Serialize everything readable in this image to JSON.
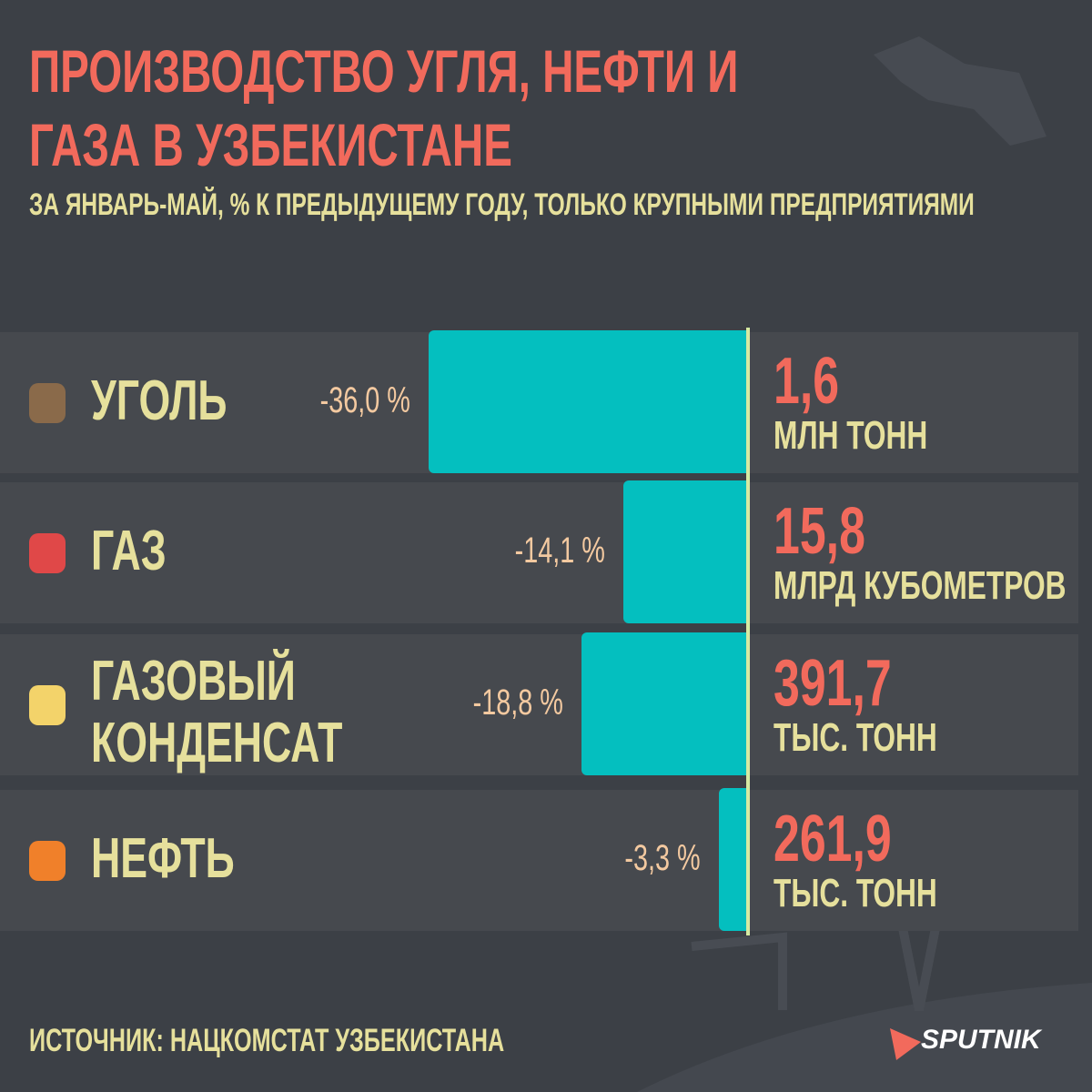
{
  "chart_data": {
    "type": "bar",
    "title": "ПРОИЗВОДСТВО УГЛЯ, НЕФТИ И ГАЗА В УЗБЕКИСТАНЕ",
    "subtitle": "ЗА ЯНВАРЬ-МАЙ, % К ПРЕДЫДУЩЕМУ ГОДУ, ТОЛЬКО КРУПНЫМИ ПРЕДПРИЯТИЯМИ",
    "categories": [
      "УГОЛЬ",
      "ГАЗ",
      "ГАЗОВЫЙ КОНДЕНСАТ",
      "НЕФТЬ"
    ],
    "values": [
      -36.0,
      -14.1,
      -18.8,
      -3.3
    ],
    "value_labels": [
      "-36,0 %",
      "-14,1 %",
      "-18,8 %",
      "-3,3 %"
    ],
    "color": "#04bfbf",
    "production": [
      {
        "amount": "1,6",
        "unit": "МЛН ТОНН"
      },
      {
        "amount": "15,8",
        "unit": "МЛРД КУБОМЕТРОВ"
      },
      {
        "amount": "391,7",
        "unit": "ТЫС. ТОНН"
      },
      {
        "amount": "261,9",
        "unit": "ТЫС. ТОНН"
      }
    ],
    "source": "ИСТОЧНИК: НАЦКОМСТАТ УЗБЕКИСТАНА",
    "brand": "SPUTNIK"
  }
}
